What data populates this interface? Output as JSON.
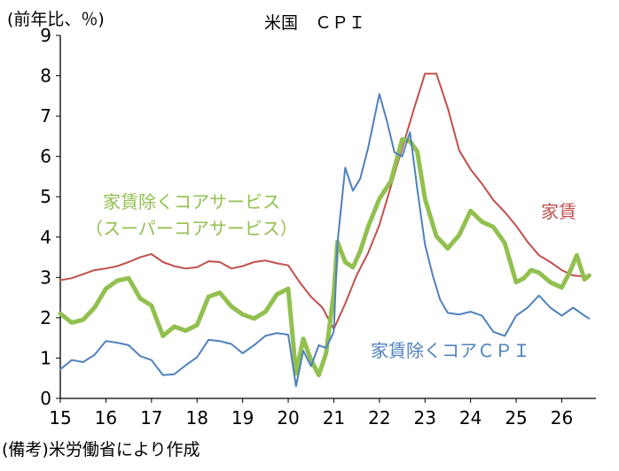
{
  "chart_data": {
    "type": "line",
    "title": "米国　ＣＰＩ",
    "ylabel": "(前年比、％)",
    "source": "(備考)米労働省により作成",
    "ylim": [
      0,
      9
    ],
    "yticks": [
      "0",
      "1",
      "2",
      "3",
      "4",
      "5",
      "6",
      "7",
      "8",
      "9"
    ],
    "xlim": [
      2015.0,
      2026.75
    ],
    "xticks": [
      {
        "label": "15",
        "x": 2015.0
      },
      {
        "label": "16",
        "x": 2016.0
      },
      {
        "label": "17",
        "x": 2017.0
      },
      {
        "label": "18",
        "x": 2018.0
      },
      {
        "label": "19",
        "x": 2019.0
      },
      {
        "label": "20",
        "x": 2020.0
      },
      {
        "label": "21",
        "x": 2021.0
      },
      {
        "label": "22",
        "x": 2022.0
      },
      {
        "label": "23",
        "x": 2023.0
      },
      {
        "label": "24",
        "x": 2024.0
      },
      {
        "label": "25",
        "x": 2025.0
      },
      {
        "label": "26",
        "x": 2026.0
      }
    ],
    "grid": false,
    "legend": "inline labels",
    "series": [
      {
        "name": "家賃",
        "label_lines": [
          "家賃"
        ],
        "color": "#c0504d",
        "width": 2,
        "x": [
          2015.0,
          2015.25,
          2015.5,
          2015.75,
          2016.0,
          2016.25,
          2016.5,
          2016.75,
          2017.0,
          2017.25,
          2017.5,
          2017.75,
          2018.0,
          2018.25,
          2018.5,
          2018.75,
          2019.0,
          2019.25,
          2019.5,
          2019.75,
          2020.0,
          2020.25,
          2020.5,
          2020.75,
          2021.0,
          2021.25,
          2021.5,
          2021.75,
          2022.0,
          2022.25,
          2022.5,
          2022.75,
          2023.0,
          2023.25,
          2023.5,
          2023.75,
          2024.0,
          2024.25,
          2024.5,
          2024.75,
          2025.0,
          2025.25,
          2025.5,
          2025.75,
          2026.0,
          2026.25,
          2026.5
        ],
        "y": [
          2.93,
          2.98,
          3.08,
          3.18,
          3.22,
          3.28,
          3.38,
          3.5,
          3.58,
          3.38,
          3.28,
          3.22,
          3.25,
          3.4,
          3.38,
          3.22,
          3.28,
          3.38,
          3.42,
          3.35,
          3.3,
          2.88,
          2.52,
          2.25,
          1.72,
          2.35,
          3.05,
          3.6,
          4.3,
          5.25,
          6.2,
          7.15,
          8.05,
          8.05,
          7.2,
          6.15,
          5.68,
          5.32,
          4.92,
          4.62,
          4.28,
          3.88,
          3.55,
          3.38,
          3.18,
          3.05,
          3.02
        ]
      },
      {
        "name": "家賃除くコアサービス（スーパーコアサービス）",
        "label_lines": [
          "家賃除くコアサービス",
          "（スーパーコアサービス）"
        ],
        "color": "#92c050",
        "width": 5,
        "x": [
          2015.0,
          2015.25,
          2015.5,
          2015.75,
          2016.0,
          2016.25,
          2016.5,
          2016.75,
          2017.0,
          2017.25,
          2017.5,
          2017.75,
          2018.0,
          2018.25,
          2018.5,
          2018.75,
          2019.0,
          2019.25,
          2019.5,
          2019.75,
          2020.0,
          2020.17,
          2020.33,
          2020.5,
          2020.67,
          2020.83,
          2021.0,
          2021.08,
          2021.25,
          2021.42,
          2021.58,
          2021.75,
          2022.0,
          2022.25,
          2022.5,
          2022.67,
          2022.83,
          2023.0,
          2023.25,
          2023.5,
          2023.75,
          2024.0,
          2024.25,
          2024.5,
          2024.75,
          2025.0,
          2025.17,
          2025.33,
          2025.5,
          2025.75,
          2026.0,
          2026.17,
          2026.33,
          2026.5,
          2026.6
        ],
        "y": [
          2.1,
          1.88,
          1.95,
          2.25,
          2.72,
          2.92,
          2.98,
          2.48,
          2.3,
          1.55,
          1.78,
          1.68,
          1.82,
          2.52,
          2.62,
          2.28,
          2.08,
          1.98,
          2.15,
          2.58,
          2.72,
          0.62,
          1.48,
          0.95,
          0.58,
          1.12,
          2.62,
          3.88,
          3.38,
          3.25,
          3.65,
          4.25,
          4.95,
          5.38,
          6.42,
          6.38,
          6.12,
          4.95,
          4.02,
          3.72,
          4.05,
          4.65,
          4.38,
          4.25,
          3.85,
          2.88,
          2.98,
          3.18,
          3.12,
          2.88,
          2.75,
          3.12,
          3.55,
          2.95,
          3.05
        ]
      },
      {
        "name": "家賃除くコアＣＰＩ",
        "label_lines": [
          "家賃除くコアＣＰＩ"
        ],
        "color": "#4f81bd",
        "width": 2,
        "x": [
          2015.0,
          2015.25,
          2015.5,
          2015.75,
          2016.0,
          2016.25,
          2016.5,
          2016.75,
          2017.0,
          2017.25,
          2017.5,
          2017.75,
          2018.0,
          2018.25,
          2018.5,
          2018.75,
          2019.0,
          2019.25,
          2019.5,
          2019.75,
          2020.0,
          2020.17,
          2020.33,
          2020.5,
          2020.67,
          2020.83,
          2021.0,
          2021.08,
          2021.25,
          2021.42,
          2021.58,
          2021.75,
          2022.0,
          2022.17,
          2022.33,
          2022.5,
          2022.67,
          2022.83,
          2023.0,
          2023.17,
          2023.33,
          2023.5,
          2023.75,
          2024.0,
          2024.25,
          2024.5,
          2024.75,
          2025.0,
          2025.25,
          2025.5,
          2025.75,
          2026.0,
          2026.25,
          2026.5,
          2026.6
        ],
        "y": [
          0.72,
          0.95,
          0.9,
          1.08,
          1.42,
          1.38,
          1.32,
          1.05,
          0.95,
          0.58,
          0.6,
          0.82,
          1.02,
          1.45,
          1.42,
          1.35,
          1.12,
          1.32,
          1.55,
          1.62,
          1.58,
          0.3,
          1.18,
          0.8,
          1.32,
          1.25,
          1.65,
          3.85,
          5.72,
          5.15,
          5.45,
          6.2,
          7.55,
          6.85,
          6.1,
          6.0,
          6.6,
          5.2,
          3.82,
          3.05,
          2.45,
          2.12,
          2.08,
          2.15,
          2.05,
          1.65,
          1.55,
          2.05,
          2.25,
          2.55,
          2.25,
          2.05,
          2.25,
          2.05,
          1.98
        ]
      }
    ]
  }
}
